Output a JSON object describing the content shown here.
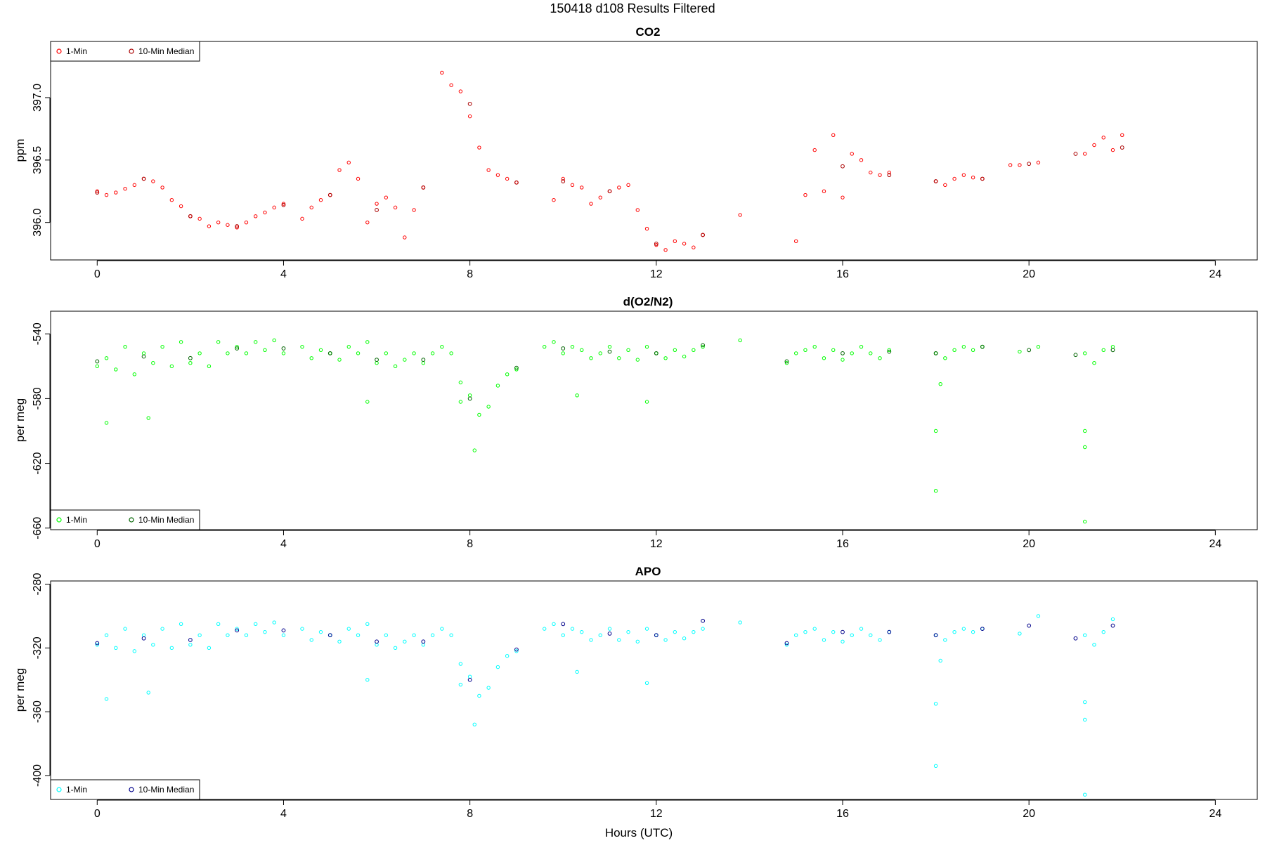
{
  "figure": {
    "title": "150418   d108   Results Filtered",
    "xlabel": "Hours (UTC)"
  },
  "chart_data": [
    {
      "type": "scatter",
      "title": "CO2",
      "ylabel": "ppm",
      "xlim": [
        -1,
        24.9
      ],
      "ylim": [
        395.7,
        397.45
      ],
      "xticks": [
        0,
        4,
        8,
        12,
        16,
        20,
        24
      ],
      "yticks": [
        396.0,
        396.5,
        397.0
      ],
      "ytick_labels": [
        "396.0",
        "396.5",
        "397.0"
      ],
      "legend_position": "top-left",
      "series": [
        {
          "name": "1-Min",
          "color": "#ff0000",
          "x": [
            0.0,
            0.2,
            0.4,
            0.6,
            0.8,
            1.0,
            1.2,
            1.4,
            1.6,
            1.8,
            2.0,
            2.2,
            2.4,
            2.6,
            2.8,
            3.0,
            3.2,
            3.4,
            3.6,
            3.8,
            4.0,
            4.4,
            4.6,
            4.8,
            5.0,
            5.2,
            5.4,
            5.6,
            5.8,
            6.0,
            6.2,
            6.4,
            6.6,
            6.8,
            7.0,
            7.4,
            7.6,
            7.8,
            8.0,
            8.2,
            8.4,
            8.6,
            8.8,
            9.0,
            9.8,
            10.0,
            10.2,
            10.4,
            10.6,
            10.8,
            11.0,
            11.2,
            11.4,
            11.6,
            11.8,
            12.0,
            12.2,
            12.4,
            12.6,
            12.8,
            13.0,
            13.8,
            15.0,
            15.2,
            15.4,
            15.6,
            15.8,
            16.0,
            16.2,
            16.4,
            16.6,
            16.8,
            17.0,
            18.0,
            18.2,
            18.4,
            18.6,
            18.8,
            19.0,
            19.6,
            19.8,
            20.2,
            21.2,
            21.4,
            21.6,
            21.8,
            22.0
          ],
          "y": [
            396.25,
            396.22,
            396.24,
            396.27,
            396.3,
            396.35,
            396.33,
            396.28,
            396.18,
            396.13,
            396.05,
            396.03,
            395.97,
            396.0,
            395.98,
            395.96,
            396.0,
            396.05,
            396.08,
            396.12,
            396.15,
            396.03,
            396.12,
            396.18,
            396.22,
            396.42,
            396.48,
            396.35,
            396.0,
            396.15,
            396.2,
            396.12,
            395.88,
            396.1,
            396.28,
            397.2,
            397.1,
            397.05,
            396.85,
            396.6,
            396.42,
            396.38,
            396.35,
            396.32,
            396.18,
            396.35,
            396.3,
            396.28,
            396.15,
            396.2,
            396.25,
            396.28,
            396.3,
            396.1,
            395.95,
            395.82,
            395.78,
            395.85,
            395.83,
            395.8,
            395.9,
            396.06,
            395.85,
            396.22,
            396.58,
            396.25,
            396.7,
            396.2,
            396.55,
            396.5,
            396.4,
            396.38,
            396.4,
            396.33,
            396.3,
            396.35,
            396.38,
            396.36,
            396.35,
            396.46,
            396.46,
            396.48,
            396.55,
            396.62,
            396.68,
            396.58,
            396.7
          ]
        },
        {
          "name": "10-Min Median",
          "color": "#aa0000",
          "x": [
            0.0,
            1.0,
            2.0,
            3.0,
            4.0,
            5.0,
            6.0,
            7.0,
            8.0,
            9.0,
            10.0,
            11.0,
            12.0,
            13.0,
            16.0,
            17.0,
            18.0,
            19.0,
            20.0,
            21.0,
            22.0
          ],
          "y": [
            396.24,
            396.35,
            396.05,
            395.97,
            396.14,
            396.22,
            396.1,
            396.28,
            396.95,
            396.32,
            396.33,
            396.25,
            395.83,
            395.9,
            396.45,
            396.38,
            396.33,
            396.35,
            396.47,
            396.55,
            396.6
          ]
        }
      ]
    },
    {
      "type": "scatter",
      "title": "d(O2/N2)",
      "ylabel": "per meg",
      "xlim": [
        -1,
        24.9
      ],
      "ylim": [
        -661,
        -526
      ],
      "xticks": [
        0,
        4,
        8,
        12,
        16,
        20,
        24
      ],
      "yticks": [
        -540,
        -580,
        -620,
        -660
      ],
      "ytick_labels": [
        "-540",
        "-580",
        "-620",
        "-660"
      ],
      "legend_position": "bottom-left",
      "series": [
        {
          "name": "1-Min",
          "color": "#00ff00",
          "x": [
            0.0,
            0.2,
            0.4,
            0.6,
            0.8,
            1.0,
            1.2,
            1.4,
            1.6,
            1.8,
            2.0,
            2.2,
            2.4,
            2.6,
            2.8,
            3.0,
            3.2,
            3.4,
            3.6,
            3.8,
            4.0,
            4.4,
            4.6,
            4.8,
            5.0,
            5.2,
            5.4,
            5.6,
            5.8,
            6.0,
            6.2,
            6.4,
            6.6,
            6.8,
            7.0,
            7.2,
            7.4,
            7.6,
            7.8,
            8.0,
            8.2,
            8.4,
            8.6,
            8.8,
            9.0,
            9.6,
            9.8,
            10.0,
            10.2,
            10.4,
            10.6,
            10.8,
            11.0,
            11.2,
            11.4,
            11.6,
            11.8,
            12.0,
            12.2,
            12.4,
            12.6,
            12.8,
            13.0,
            13.8,
            14.8,
            15.0,
            15.2,
            15.4,
            15.6,
            15.8,
            16.0,
            16.2,
            16.4,
            16.6,
            16.8,
            17.0,
            18.0,
            18.2,
            18.4,
            18.6,
            18.8,
            19.0,
            19.8,
            20.2,
            21.2,
            21.4,
            21.6,
            21.8,
            0.2,
            1.1,
            5.8,
            7.8,
            8.1,
            10.3,
            11.8,
            18.0,
            18.0,
            18.1,
            21.2,
            21.2,
            21.2
          ],
          "y": [
            -560,
            -555,
            -562,
            -548,
            -565,
            -552,
            -558,
            -548,
            -560,
            -545,
            -558,
            -552,
            -560,
            -545,
            -552,
            -548,
            -552,
            -545,
            -550,
            -544,
            -552,
            -548,
            -555,
            -550,
            -552,
            -556,
            -548,
            -552,
            -545,
            -558,
            -552,
            -560,
            -556,
            -552,
            -558,
            -552,
            -548,
            -552,
            -570,
            -578,
            -590,
            -585,
            -572,
            -565,
            -562,
            -548,
            -545,
            -552,
            -548,
            -550,
            -555,
            -552,
            -548,
            -555,
            -550,
            -556,
            -548,
            -552,
            -555,
            -550,
            -554,
            -550,
            -548,
            -544,
            -558,
            -552,
            -550,
            -548,
            -555,
            -550,
            -556,
            -552,
            -548,
            -552,
            -555,
            -550,
            -552,
            -555,
            -550,
            -548,
            -550,
            -548,
            -551,
            -548,
            -552,
            -558,
            -550,
            -548,
            -595,
            -592,
            -582,
            -582,
            -612,
            -578,
            -582,
            -600,
            -637,
            -571,
            -600,
            -610,
            -656
          ]
        },
        {
          "name": "10-Min Median",
          "color": "#006400",
          "x": [
            0.0,
            1.0,
            2.0,
            3.0,
            4.0,
            5.0,
            6.0,
            7.0,
            8.0,
            9.0,
            10.0,
            11.0,
            12.0,
            13.0,
            14.8,
            16.0,
            17.0,
            18.0,
            19.0,
            20.0,
            21.0,
            21.8
          ],
          "y": [
            -557,
            -554,
            -555,
            -549,
            -549,
            -552,
            -556,
            -556,
            -580,
            -561,
            -549,
            -551,
            -552,
            -547,
            -557,
            -552,
            -551,
            -552,
            -548,
            -550,
            -553,
            -550
          ]
        }
      ]
    },
    {
      "type": "scatter",
      "title": "APO",
      "ylabel": "per meg",
      "xlim": [
        -1,
        24.9
      ],
      "ylim": [
        -415,
        -278
      ],
      "xticks": [
        0,
        4,
        8,
        12,
        16,
        20,
        24
      ],
      "yticks": [
        -280,
        -320,
        -360,
        -400
      ],
      "ytick_labels": [
        "-280",
        "-320",
        "-360",
        "-400"
      ],
      "legend_position": "bottom-left",
      "series": [
        {
          "name": "1-Min",
          "color": "#00ffff",
          "x": [
            0.0,
            0.2,
            0.4,
            0.6,
            0.8,
            1.0,
            1.2,
            1.4,
            1.6,
            1.8,
            2.0,
            2.2,
            2.4,
            2.6,
            2.8,
            3.0,
            3.2,
            3.4,
            3.6,
            3.8,
            4.0,
            4.4,
            4.6,
            4.8,
            5.0,
            5.2,
            5.4,
            5.6,
            5.8,
            6.0,
            6.2,
            6.4,
            6.6,
            6.8,
            7.0,
            7.2,
            7.4,
            7.6,
            7.8,
            8.0,
            8.2,
            8.4,
            8.6,
            8.8,
            9.0,
            9.6,
            9.8,
            10.0,
            10.2,
            10.4,
            10.6,
            10.8,
            11.0,
            11.2,
            11.4,
            11.6,
            11.8,
            12.0,
            12.2,
            12.4,
            12.6,
            12.8,
            13.0,
            13.8,
            14.8,
            15.0,
            15.2,
            15.4,
            15.6,
            15.8,
            16.0,
            16.2,
            16.4,
            16.6,
            16.8,
            17.0,
            18.0,
            18.2,
            18.4,
            18.6,
            18.8,
            19.0,
            19.8,
            20.2,
            21.2,
            21.4,
            21.6,
            21.8,
            0.2,
            1.1,
            5.8,
            7.8,
            8.1,
            10.3,
            11.8,
            18.0,
            18.0,
            18.1,
            21.2,
            21.2,
            21.2
          ],
          "y": [
            -318,
            -312,
            -320,
            -308,
            -322,
            -312,
            -318,
            -308,
            -320,
            -305,
            -318,
            -312,
            -320,
            -305,
            -312,
            -308,
            -312,
            -305,
            -310,
            -304,
            -312,
            -308,
            -315,
            -310,
            -312,
            -316,
            -308,
            -312,
            -305,
            -318,
            -312,
            -320,
            -316,
            -312,
            -318,
            -312,
            -308,
            -312,
            -330,
            -338,
            -350,
            -345,
            -332,
            -325,
            -322,
            -308,
            -305,
            -312,
            -308,
            -310,
            -315,
            -312,
            -308,
            -315,
            -310,
            -316,
            -308,
            -312,
            -315,
            -310,
            -314,
            -310,
            -308,
            -304,
            -318,
            -312,
            -310,
            -308,
            -315,
            -310,
            -316,
            -312,
            -308,
            -312,
            -315,
            -310,
            -312,
            -315,
            -310,
            -308,
            -310,
            -308,
            -311,
            -300,
            -312,
            -318,
            -310,
            -302,
            -352,
            -348,
            -340,
            -343,
            -368,
            -335,
            -342,
            -355,
            -394,
            -328,
            -354,
            -365,
            -412
          ]
        },
        {
          "name": "10-Min Median",
          "color": "#00008b",
          "x": [
            0.0,
            1.0,
            2.0,
            3.0,
            4.0,
            5.0,
            6.0,
            7.0,
            8.0,
            9.0,
            10.0,
            11.0,
            12.0,
            13.0,
            14.8,
            16.0,
            17.0,
            18.0,
            19.0,
            20.0,
            21.0,
            21.8
          ],
          "y": [
            -317,
            -314,
            -315,
            -309,
            -309,
            -312,
            -316,
            -316,
            -340,
            -321,
            -305,
            -311,
            -312,
            -303,
            -317,
            -310,
            -310,
            -312,
            -308,
            -306,
            -314,
            -306
          ]
        }
      ]
    }
  ]
}
